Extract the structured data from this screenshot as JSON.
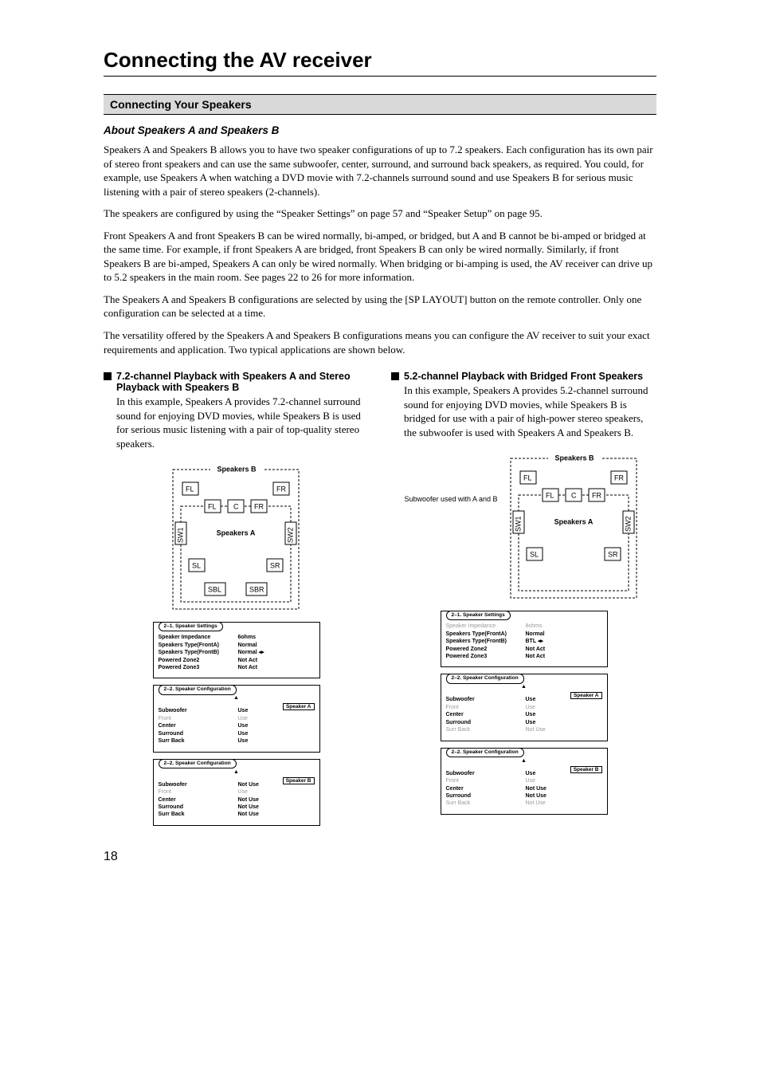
{
  "page_number": "18",
  "title": "Connecting the AV receiver",
  "section": "Connecting Your Speakers",
  "sub1": "About Speakers A and Speakers B",
  "p1": "Speakers A and Speakers B allows you to have two speaker configurations of up to 7.2 speakers. Each configuration has its own pair of stereo front speakers and can use the same subwoofer, center, surround, and surround back speakers, as required. You could, for example, use Speakers A when watching a DVD movie with 7.2-channels surround sound and use Speakers B for serious music listening with a pair of stereo speakers (2-channels).",
  "p2": "The speakers are configured by using the “Speaker Settings” on page 57 and “Speaker Setup” on page 95.",
  "p3": "Front Speakers A and front Speakers B can be wired normally, bi-amped, or bridged, but A and B cannot be bi-amped or bridged at the same time. For example, if front Speakers A are bridged, front Speakers B can only be wired normally. Similarly, if front Speakers B are bi-amped, Speakers A can only be wired normally. When bridging or bi-amping is used, the AV receiver can drive up to 5.2 speakers in the main room. See pages 22 to 26 for more information.",
  "p4": "The Speakers A and Speakers B configurations are selected by using the [SP LAYOUT] button on the remote controller. Only one configuration can be selected at a time.",
  "p5": "The versatility offered by the Speakers A and Speakers B configurations means you can configure the AV receiver to suit your exact requirements and application. Two typical applications are shown below.",
  "left": {
    "title": "7.2-channel Playback with Speakers A and Stereo Playback with Speakers B",
    "body": "In this example, Speakers A provides 7.2-channel surround sound for enjoying DVD movies, while Speakers B is used for serious music listening with a pair of top-quality stereo speakers.",
    "diagram": {
      "outer_label": "Speakers B",
      "inner_label": "Speakers A",
      "spk": {
        "FL": "FL",
        "FR": "FR",
        "C": "C",
        "SW1": "SW1",
        "SW2": "SW2",
        "SL": "SL",
        "SR": "SR",
        "SBL": "SBL",
        "SBR": "SBR"
      }
    },
    "menu_settings": {
      "tab": "2–1.  Speaker Settings",
      "rows": [
        {
          "k": "Speaker Impedance",
          "v": "6ohms",
          "gray": false
        },
        {
          "k": "Speakers Type(FrontA)",
          "v": "Normal",
          "gray": false
        },
        {
          "k": "Speakers Type(FrontB)",
          "v": "Normal",
          "gray": false,
          "sel": true
        },
        {
          "k": "Powered Zone2",
          "v": "Not Act",
          "gray": false
        },
        {
          "k": "Powered Zone3",
          "v": "Not Act",
          "gray": false
        }
      ]
    },
    "menu_config_a": {
      "tab": "2–2.  Speaker Configuration",
      "badge": "Speaker A",
      "rows": [
        {
          "k": "Subwoofer",
          "v": "Use",
          "gray": false
        },
        {
          "k": "Front",
          "v": "Use",
          "gray": true
        },
        {
          "k": "Center",
          "v": "Use",
          "gray": false
        },
        {
          "k": "Surround",
          "v": "Use",
          "gray": false
        },
        {
          "k": "Surr Back",
          "v": "Use",
          "gray": false
        }
      ]
    },
    "menu_config_b": {
      "tab": "2–2.  Speaker Configuration",
      "badge": "Speaker B",
      "rows": [
        {
          "k": "Subwoofer",
          "v": "Not Use",
          "gray": false
        },
        {
          "k": "Front",
          "v": "Use",
          "gray": true
        },
        {
          "k": "Center",
          "v": "Not Use",
          "gray": false
        },
        {
          "k": "Surround",
          "v": "Not Use",
          "gray": false
        },
        {
          "k": "Surr Back",
          "v": "Not Use",
          "gray": false
        }
      ]
    }
  },
  "right": {
    "title": "5.2-channel Playback with Bridged Front Speakers",
    "body": "In this example, Speakers A provides 5.2-channel surround sound for enjoying DVD movies, while Speakers B is bridged for use with a pair of high-power stereo speakers, the subwoofer is used with Speakers A and Speakers B.",
    "side_note": "Subwoofer used with A and B",
    "diagram": {
      "outer_label": "Speakers B",
      "inner_label": "Speakers A",
      "spk": {
        "FL": "FL",
        "FR": "FR",
        "C": "C",
        "SW1": "SW1",
        "SW2": "SW2",
        "SL": "SL",
        "SR": "SR"
      }
    },
    "menu_settings": {
      "tab": "2–1.  Speaker Settings",
      "rows": [
        {
          "k": "Speaker Impedance",
          "v": "8ohms",
          "gray": true
        },
        {
          "k": "Speakers Type(FrontA)",
          "v": "Normal",
          "gray": false
        },
        {
          "k": "Speakers Type(FrontB)",
          "v": "BTL",
          "gray": false,
          "sel": true
        },
        {
          "k": "Powered Zone2",
          "v": "Not Act",
          "gray": false
        },
        {
          "k": "Powered Zone3",
          "v": "Not Act",
          "gray": false
        }
      ]
    },
    "menu_config_a": {
      "tab": "2–2.  Speaker Configuration",
      "badge": "Speaker A",
      "rows": [
        {
          "k": "Subwoofer",
          "v": "Use",
          "gray": false
        },
        {
          "k": "Front",
          "v": "Use",
          "gray": true
        },
        {
          "k": "Center",
          "v": "Use",
          "gray": false
        },
        {
          "k": "Surround",
          "v": "Use",
          "gray": false
        },
        {
          "k": "Surr Back",
          "v": "Not Use",
          "gray": true
        }
      ]
    },
    "menu_config_b": {
      "tab": "2–2.  Speaker Configuration",
      "badge": "Speaker B",
      "rows": [
        {
          "k": "Subwoofer",
          "v": "Use",
          "gray": false
        },
        {
          "k": "Front",
          "v": "Use",
          "gray": true
        },
        {
          "k": "Center",
          "v": "Not Use",
          "gray": false
        },
        {
          "k": "Surround",
          "v": "Not Use",
          "gray": false
        },
        {
          "k": "Surr Back",
          "v": "Not Use",
          "gray": true
        }
      ]
    }
  }
}
